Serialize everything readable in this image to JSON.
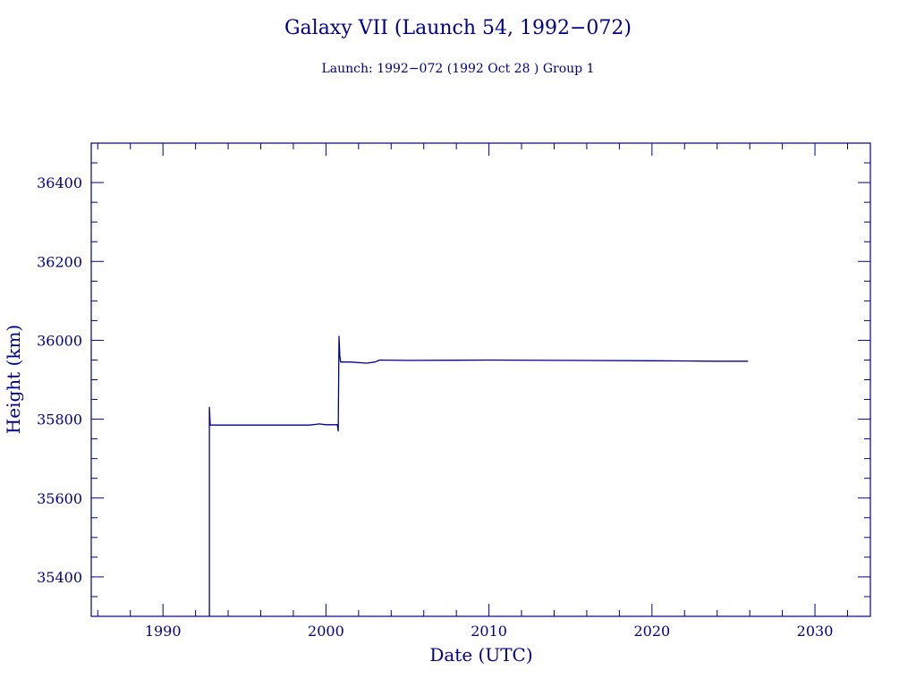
{
  "chart_data": {
    "type": "line",
    "title": "Galaxy VII (Launch 54, 1992−072)",
    "subtitle": "Launch: 1992−072  (1992 Oct 28 )  Group 1",
    "xlabel": "Date (UTC)",
    "ylabel": "Height (km)",
    "xlim": [
      1985.6,
      2033.4
    ],
    "ylim": [
      35300,
      36500
    ],
    "x_ticks": [
      1990,
      2000,
      2010,
      2020,
      2030
    ],
    "y_ticks": [
      35400,
      35600,
      35800,
      36000,
      36200,
      36400
    ],
    "x_minor_step": 2,
    "y_minor_step": 50,
    "grid": false,
    "legend": "none",
    "colors": {
      "ink": "#00008b",
      "background": "#ffffff"
    },
    "series": [
      {
        "values": [
          [
            1992.85,
            35300
          ],
          [
            1992.85,
            35830
          ],
          [
            1992.9,
            35785
          ],
          [
            1995.0,
            35785
          ],
          [
            1997.0,
            35785
          ],
          [
            1999.0,
            35785
          ],
          [
            1999.6,
            35788
          ],
          [
            2000.0,
            35786
          ],
          [
            2000.7,
            35786
          ],
          [
            2000.75,
            35770
          ],
          [
            2000.8,
            36010
          ],
          [
            2000.85,
            35960
          ],
          [
            2000.9,
            35945
          ],
          [
            2001.5,
            35945
          ],
          [
            2002.5,
            35942
          ],
          [
            2003.0,
            35945
          ],
          [
            2003.3,
            35950
          ],
          [
            2005.0,
            35949
          ],
          [
            2010.0,
            35950
          ],
          [
            2015.0,
            35949
          ],
          [
            2020.0,
            35948
          ],
          [
            2024.0,
            35947
          ],
          [
            2025.9,
            35947
          ]
        ]
      }
    ]
  }
}
